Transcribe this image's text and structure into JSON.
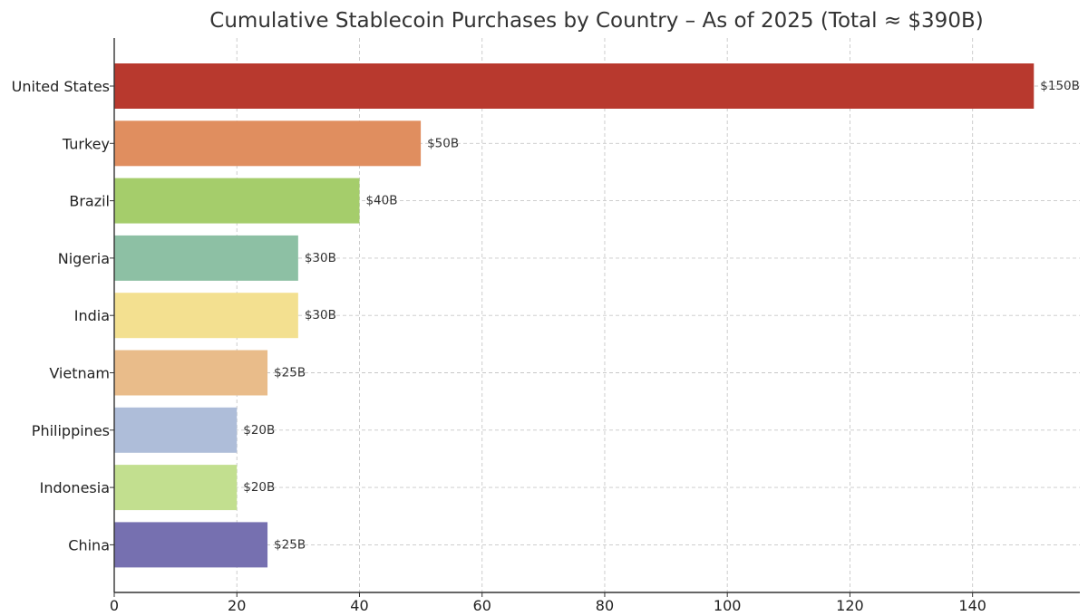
{
  "chart_data": {
    "type": "bar",
    "orientation": "horizontal",
    "title": "Cumulative Stablecoin Purchases by Country – As of 2025 (Total ≈ $390B)",
    "xlabel": "",
    "ylabel": "",
    "xlim": [
      0,
      157.5
    ],
    "x_ticks": [
      0,
      20,
      40,
      60,
      80,
      100,
      120,
      140
    ],
    "grid": true,
    "categories": [
      "United States",
      "Turkey",
      "Brazil",
      "Nigeria",
      "India",
      "Vietnam",
      "Philippines",
      "Indonesia",
      "China"
    ],
    "values": [
      150,
      50,
      40,
      30,
      30,
      25,
      20,
      20,
      25
    ],
    "value_labels": [
      "$150B",
      "$50B",
      "$40B",
      "$30B",
      "$30B",
      "$25B",
      "$20B",
      "$20B",
      "$25B"
    ],
    "colors": [
      "#b8392e",
      "#e08e5f",
      "#a5cd6b",
      "#8dc0a4",
      "#f3e090",
      "#e9bc8a",
      "#aebdd9",
      "#c2df8f",
      "#7670b0"
    ]
  }
}
